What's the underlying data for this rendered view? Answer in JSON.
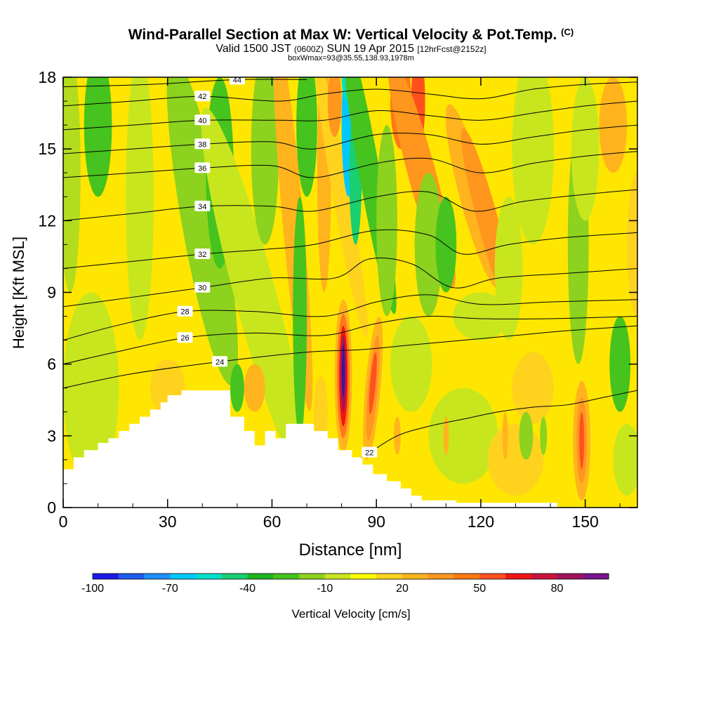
{
  "title": "Wind-Parallel Section at Max W: Vertical Velocity & Pot.Temp.",
  "title_mark": "(C)",
  "subtitle_a": "Valid 1500 JST",
  "subtitle_b": "(0600Z)",
  "subtitle_c": "SUN 19 Apr 2015",
  "subtitle_d": "[12hrFcst@2152z]",
  "subtitle2": "boxWmax=93@35.55,138.93,1978m",
  "chart_data": {
    "type": "heatmap",
    "xlabel": "Distance [nm]",
    "ylabel": "Height [Kft MSL]",
    "xlim": [
      0,
      165
    ],
    "ylim": [
      0,
      18
    ],
    "xticks": [
      0,
      30,
      60,
      90,
      120,
      150
    ],
    "yticks": [
      0,
      3,
      6,
      9,
      12,
      15,
      18
    ],
    "colorbar_label": "Vertical Velocity [cm/s]",
    "colorbar_ticks": [
      -100,
      -70,
      -40,
      -10,
      20,
      50,
      80
    ],
    "colorbar_colors": [
      "#1a1ae6",
      "#1f5cf0",
      "#1e90ff",
      "#00c8ff",
      "#00e0c8",
      "#19cf70",
      "#1fb41f",
      "#46c31e",
      "#8cd21e",
      "#c8e61e",
      "#ffff00",
      "#ffd21e",
      "#ffb41e",
      "#ff961e",
      "#ff7814",
      "#ff501e",
      "#f01414",
      "#c8143c",
      "#a0145a",
      "#78148c"
    ],
    "terrain_height_kft": [
      [
        0,
        1.6
      ],
      [
        1,
        1.6
      ],
      [
        3,
        1.6
      ],
      [
        3,
        2.1
      ],
      [
        6,
        2.1
      ],
      [
        6,
        2.4
      ],
      [
        10,
        2.4
      ],
      [
        10,
        2.7
      ],
      [
        13,
        2.7
      ],
      [
        13,
        2.9
      ],
      [
        16,
        2.9
      ],
      [
        16,
        3.2
      ],
      [
        19,
        3.2
      ],
      [
        19,
        3.5
      ],
      [
        22,
        3.5
      ],
      [
        22,
        3.8
      ],
      [
        25,
        3.8
      ],
      [
        25,
        4.1
      ],
      [
        28,
        4.1
      ],
      [
        28,
        4.4
      ],
      [
        30,
        4.4
      ],
      [
        30,
        4.7
      ],
      [
        34,
        4.7
      ],
      [
        34,
        4.9
      ],
      [
        48,
        4.9
      ],
      [
        48,
        3.8
      ],
      [
        52,
        3.8
      ],
      [
        52,
        3.2
      ],
      [
        55,
        3.2
      ],
      [
        55,
        2.6
      ],
      [
        58,
        2.6
      ],
      [
        58,
        3.2
      ],
      [
        61,
        3.2
      ],
      [
        61,
        2.9
      ],
      [
        64,
        2.9
      ],
      [
        64,
        3.5
      ],
      [
        72,
        3.5
      ],
      [
        72,
        3.2
      ],
      [
        76,
        3.2
      ],
      [
        76,
        2.9
      ],
      [
        79,
        2.9
      ],
      [
        79,
        2.4
      ],
      [
        83,
        2.4
      ],
      [
        83,
        2.1
      ],
      [
        86,
        2.1
      ],
      [
        86,
        1.8
      ],
      [
        89,
        1.8
      ],
      [
        89,
        1.4
      ],
      [
        93,
        1.4
      ],
      [
        93,
        1.1
      ],
      [
        97,
        1.1
      ],
      [
        97,
        0.8
      ],
      [
        100,
        0.8
      ],
      [
        100,
        0.5
      ],
      [
        103,
        0.5
      ],
      [
        103,
        0.3
      ],
      [
        113,
        0.3
      ],
      [
        113,
        0.2
      ],
      [
        142,
        0.2
      ],
      [
        142,
        0
      ],
      [
        165,
        0
      ]
    ],
    "theta_contours": [
      {
        "label": "22",
        "points": [
          [
            76,
            1.5
          ],
          [
            82,
            1.8
          ],
          [
            88,
            2.3
          ],
          [
            96,
            3.0
          ],
          [
            105,
            3.4
          ],
          [
            115,
            3.7
          ],
          [
            125,
            4.0
          ],
          [
            135,
            4.2
          ],
          [
            145,
            4.3
          ],
          [
            155,
            4.6
          ],
          [
            165,
            4.9
          ]
        ]
      },
      {
        "label": "24",
        "points": [
          [
            0,
            5.0
          ],
          [
            20,
            5.6
          ],
          [
            45,
            6.1
          ],
          [
            70,
            6.5
          ],
          [
            85,
            6.6
          ],
          [
            100,
            6.8
          ],
          [
            115,
            7.0
          ],
          [
            130,
            7.2
          ],
          [
            145,
            7.4
          ],
          [
            165,
            7.6
          ]
        ]
      },
      {
        "label": "26",
        "points": [
          [
            0,
            6.0
          ],
          [
            15,
            6.5
          ],
          [
            35,
            7.1
          ],
          [
            55,
            7.3
          ],
          [
            75,
            7.2
          ],
          [
            90,
            7.7
          ],
          [
            105,
            8.0
          ],
          [
            120,
            7.9
          ],
          [
            140,
            7.9
          ],
          [
            165,
            8.0
          ]
        ]
      },
      {
        "label": "28",
        "points": [
          [
            0,
            7.0
          ],
          [
            15,
            7.6
          ],
          [
            35,
            8.2
          ],
          [
            55,
            8.2
          ],
          [
            75,
            8.0
          ],
          [
            90,
            8.6
          ],
          [
            105,
            8.9
          ],
          [
            120,
            8.5
          ],
          [
            140,
            8.6
          ],
          [
            165,
            8.7
          ]
        ]
      },
      {
        "label": "30",
        "points": [
          [
            0,
            8.4
          ],
          [
            20,
            8.8
          ],
          [
            40,
            9.2
          ],
          [
            60,
            9.6
          ],
          [
            78,
            9.6
          ],
          [
            88,
            10.4
          ],
          [
            100,
            10.2
          ],
          [
            112,
            9.2
          ],
          [
            125,
            9.6
          ],
          [
            145,
            9.8
          ],
          [
            165,
            10.0
          ]
        ]
      },
      {
        "label": "32",
        "points": [
          [
            0,
            10.0
          ],
          [
            20,
            10.3
          ],
          [
            40,
            10.6
          ],
          [
            58,
            10.8
          ],
          [
            72,
            11.0
          ],
          [
            90,
            11.6
          ],
          [
            105,
            11.4
          ],
          [
            115,
            10.6
          ],
          [
            128,
            11.0
          ],
          [
            145,
            11.3
          ],
          [
            165,
            11.5
          ]
        ]
      },
      {
        "label": "34",
        "points": [
          [
            0,
            12.0
          ],
          [
            20,
            12.3
          ],
          [
            40,
            12.6
          ],
          [
            60,
            12.6
          ],
          [
            72,
            12.4
          ],
          [
            90,
            13.0
          ],
          [
            105,
            13.2
          ],
          [
            118,
            12.4
          ],
          [
            132,
            12.8
          ],
          [
            150,
            13.1
          ],
          [
            165,
            13.3
          ]
        ]
      },
      {
        "label": "36",
        "points": [
          [
            0,
            13.8
          ],
          [
            20,
            14.0
          ],
          [
            40,
            14.2
          ],
          [
            60,
            14.3
          ],
          [
            72,
            13.8
          ],
          [
            90,
            14.4
          ],
          [
            105,
            14.6
          ],
          [
            120,
            14.0
          ],
          [
            135,
            14.4
          ],
          [
            150,
            14.7
          ],
          [
            165,
            14.9
          ]
        ]
      },
      {
        "label": "38",
        "points": [
          [
            0,
            14.8
          ],
          [
            20,
            15.0
          ],
          [
            40,
            15.2
          ],
          [
            60,
            15.3
          ],
          [
            72,
            15.0
          ],
          [
            90,
            15.6
          ],
          [
            105,
            15.6
          ],
          [
            120,
            15.2
          ],
          [
            135,
            15.5
          ],
          [
            150,
            15.8
          ],
          [
            165,
            16.0
          ]
        ]
      },
      {
        "label": "40",
        "points": [
          [
            0,
            15.8
          ],
          [
            20,
            16.0
          ],
          [
            40,
            16.2
          ],
          [
            62,
            16.2
          ],
          [
            75,
            16.2
          ],
          [
            90,
            16.6
          ],
          [
            105,
            16.4
          ],
          [
            120,
            16.2
          ],
          [
            135,
            16.5
          ],
          [
            150,
            16.8
          ],
          [
            165,
            17.0
          ]
        ]
      },
      {
        "label": "42",
        "points": [
          [
            0,
            16.8
          ],
          [
            20,
            17.0
          ],
          [
            40,
            17.2
          ],
          [
            62,
            17.0
          ],
          [
            75,
            17.3
          ],
          [
            90,
            17.5
          ],
          [
            105,
            17.3
          ],
          [
            120,
            17.1
          ],
          [
            135,
            17.5
          ],
          [
            150,
            17.7
          ],
          [
            165,
            17.8
          ]
        ]
      },
      {
        "label": "44",
        "points": [
          [
            0,
            17.6
          ],
          [
            25,
            17.7
          ],
          [
            50,
            17.9
          ],
          [
            70,
            17.9
          ]
        ]
      }
    ]
  }
}
